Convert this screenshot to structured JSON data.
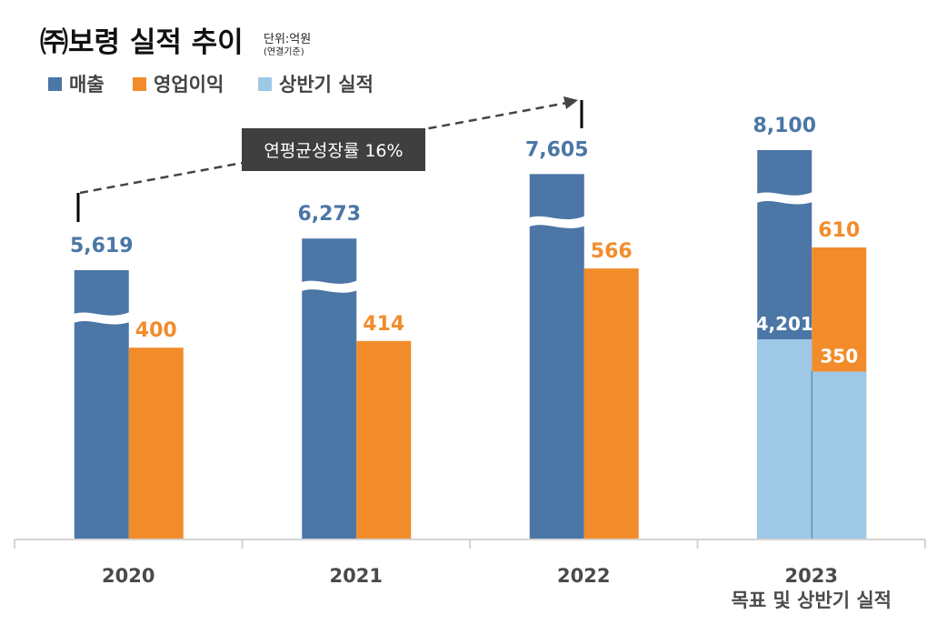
{
  "chart_data": {
    "type": "bar",
    "title": "㈜보령 실적 추이",
    "unit_label": "단위:억원",
    "unit_sublabel": "(연결기준)",
    "legend": [
      {
        "name": "매출",
        "color": "#4b76a6"
      },
      {
        "name": "영업이익",
        "color": "#f28c2b"
      },
      {
        "name": "상반기 실적",
        "color": "#9fc8e6"
      }
    ],
    "legend_position": "top-left",
    "categories": [
      "2020",
      "2021",
      "2022",
      "2023"
    ],
    "category_sublabels": [
      "",
      "",
      "",
      "목표 및 상반기 실적"
    ],
    "series": [
      {
        "name": "매출",
        "values": [
          5619,
          6273,
          7605,
          8100
        ],
        "labels": [
          "5,619",
          "6,273",
          "7,605",
          "8,100"
        ],
        "color": "#4b76a6"
      },
      {
        "name": "영업이익",
        "values": [
          400,
          414,
          566,
          610
        ],
        "labels": [
          "400",
          "414",
          "566",
          "610"
        ],
        "color": "#f28c2b"
      }
    ],
    "half_year_actual": {
      "category": "2023",
      "매출": {
        "value": 4201,
        "label": "4,201"
      },
      "영업이익": {
        "value": 350,
        "label": "350"
      },
      "color": "#9fc8e6"
    },
    "axis_break_on": "매출",
    "annotation": {
      "text": "연평균성장률 16%",
      "from_category": "2020",
      "to_category": "2022",
      "style": "dashed-arrow"
    },
    "xlabel": "",
    "ylabel": "",
    "grid": false
  }
}
